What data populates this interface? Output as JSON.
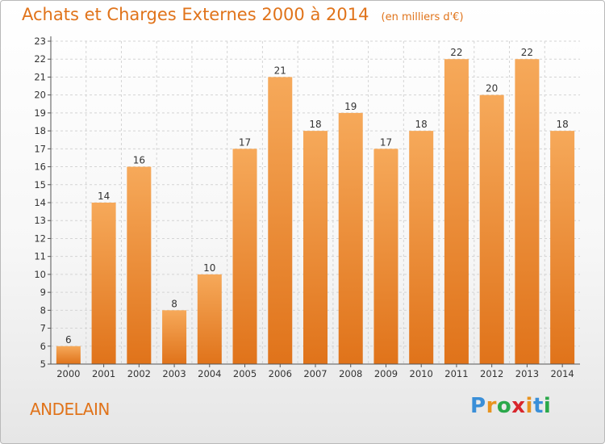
{
  "title": "Achats et Charges Externes 2000 à 2014",
  "subtitle": "(en milliers d'€)",
  "commune": "ANDELAIN",
  "logo": {
    "text": "Proxiti",
    "letter_colors": [
      "#3a8fd8",
      "#e8931f",
      "#2aa84a",
      "#d8262c",
      "#e8931f",
      "#3a8fd8",
      "#2aa84a"
    ]
  },
  "colors": {
    "bar_top": "#f6a95a",
    "bar_bottom": "#e0731a",
    "title": "#e0731a",
    "grid": "#d4d4d4"
  },
  "chart_data": {
    "type": "bar",
    "categories": [
      "2000",
      "2001",
      "2002",
      "2003",
      "2004",
      "2005",
      "2006",
      "2007",
      "2008",
      "2009",
      "2010",
      "2011",
      "2012",
      "2013",
      "2014"
    ],
    "values": [
      6,
      14,
      16,
      8,
      10,
      17,
      21,
      18,
      19,
      17,
      18,
      22,
      20,
      22,
      18
    ],
    "yticks": [
      5,
      6,
      7,
      8,
      9,
      10,
      11,
      12,
      13,
      14,
      15,
      16,
      17,
      18,
      19,
      20,
      21,
      22,
      23
    ],
    "ylim": [
      5,
      23
    ],
    "grid": true
  }
}
